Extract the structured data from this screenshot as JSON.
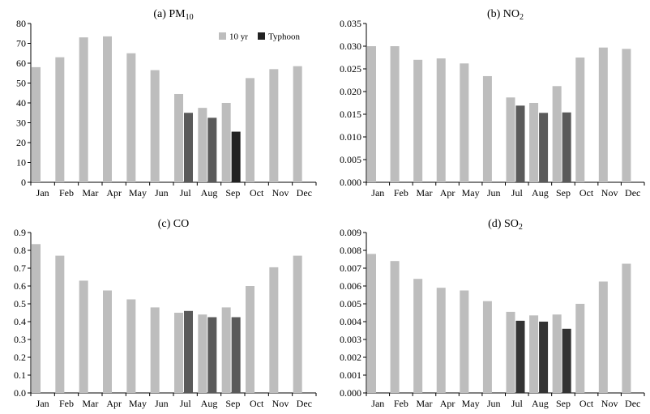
{
  "chart_data": [
    {
      "type": "bar",
      "title_main": "(a) PM",
      "title_sub": "10",
      "categories": [
        "Jan",
        "Feb",
        "Mar",
        "Apr",
        "May",
        "Jun",
        "Jul",
        "Aug",
        "Sep",
        "Oct",
        "Nov",
        "Dec"
      ],
      "ylim": [
        0,
        80
      ],
      "yticks": [
        "0",
        "10",
        "20",
        "30",
        "40",
        "50",
        "60",
        "70",
        "80"
      ],
      "legend": {
        "show": true,
        "placement": "top-right",
        "labels": [
          "10 yr",
          "Typhoon"
        ]
      },
      "series": [
        {
          "name": "10 yr",
          "values": [
            58,
            63,
            73,
            73.5,
            65,
            56.5,
            44.5,
            37.5,
            40,
            52.5,
            57,
            58.5
          ]
        },
        {
          "name": "Typhoon",
          "values": [
            null,
            null,
            null,
            null,
            null,
            null,
            35,
            32.5,
            25.5,
            null,
            null,
            null
          ]
        }
      ],
      "colors": {
        "ten_yr": "#bdbdbd",
        "typhoon": [
          "#5a5a5a",
          "#5a5a5a",
          "#222222"
        ]
      }
    },
    {
      "type": "bar",
      "title_main": "(b) NO",
      "title_sub": "2",
      "categories": [
        "Jan",
        "Feb",
        "Mar",
        "Apr",
        "May",
        "Jun",
        "Jul",
        "Aug",
        "Sep",
        "Oct",
        "Nov",
        "Dec"
      ],
      "ylim": [
        0,
        0.035
      ],
      "yticks": [
        "0.000",
        "0.005",
        "0.010",
        "0.015",
        "0.020",
        "0.025",
        "0.030",
        "0.035"
      ],
      "legend": {
        "show": false
      },
      "series": [
        {
          "name": "10 yr",
          "values": [
            0.03,
            0.03,
            0.027,
            0.0273,
            0.0262,
            0.0234,
            0.0187,
            0.0175,
            0.0212,
            0.0275,
            0.0297,
            0.0294
          ]
        },
        {
          "name": "Typhoon",
          "values": [
            null,
            null,
            null,
            null,
            null,
            null,
            0.0169,
            0.0153,
            0.0154,
            null,
            null,
            null
          ]
        }
      ],
      "colors": {
        "ten_yr": "#bdbdbd",
        "typhoon": [
          "#5a5a5a",
          "#5a5a5a",
          "#5a5a5a"
        ]
      }
    },
    {
      "type": "bar",
      "title_main": "(c) CO",
      "title_sub": "",
      "categories": [
        "Jan",
        "Feb",
        "Mar",
        "Apr",
        "May",
        "Jun",
        "Jul",
        "Aug",
        "Sep",
        "Oct",
        "Nov",
        "Dec"
      ],
      "ylim": [
        0,
        0.9
      ],
      "yticks": [
        "0.0",
        "0.1",
        "0.2",
        "0.3",
        "0.4",
        "0.5",
        "0.6",
        "0.7",
        "0.8",
        "0.9"
      ],
      "legend": {
        "show": false
      },
      "series": [
        {
          "name": "10 yr",
          "values": [
            0.835,
            0.77,
            0.63,
            0.575,
            0.525,
            0.48,
            0.45,
            0.44,
            0.48,
            0.6,
            0.705,
            0.77
          ]
        },
        {
          "name": "Typhoon",
          "values": [
            null,
            null,
            null,
            null,
            null,
            null,
            0.46,
            0.425,
            0.425,
            null,
            null,
            null
          ]
        }
      ],
      "colors": {
        "ten_yr": "#bdbdbd",
        "typhoon": [
          "#5a5a5a",
          "#5a5a5a",
          "#5a5a5a"
        ]
      }
    },
    {
      "type": "bar",
      "title_main": "(d) SO",
      "title_sub": "2",
      "categories": [
        "Jan",
        "Feb",
        "Mar",
        "Apr",
        "May",
        "Jun",
        "Jul",
        "Aug",
        "Sep",
        "Oct",
        "Nov",
        "Dec"
      ],
      "ylim": [
        0,
        0.009
      ],
      "yticks": [
        "0.000",
        "0.001",
        "0.002",
        "0.003",
        "0.004",
        "0.005",
        "0.006",
        "0.007",
        "0.008",
        "0.009"
      ],
      "legend": {
        "show": false
      },
      "series": [
        {
          "name": "10 yr",
          "values": [
            0.0078,
            0.0074,
            0.0064,
            0.0059,
            0.00575,
            0.00515,
            0.00455,
            0.00435,
            0.0044,
            0.005,
            0.00625,
            0.00725
          ]
        },
        {
          "name": "Typhoon",
          "values": [
            null,
            null,
            null,
            null,
            null,
            null,
            0.00405,
            0.004,
            0.0036,
            null,
            null,
            null
          ]
        }
      ],
      "colors": {
        "ten_yr": "#bdbdbd",
        "typhoon": [
          "#333333",
          "#333333",
          "#333333"
        ]
      }
    }
  ]
}
